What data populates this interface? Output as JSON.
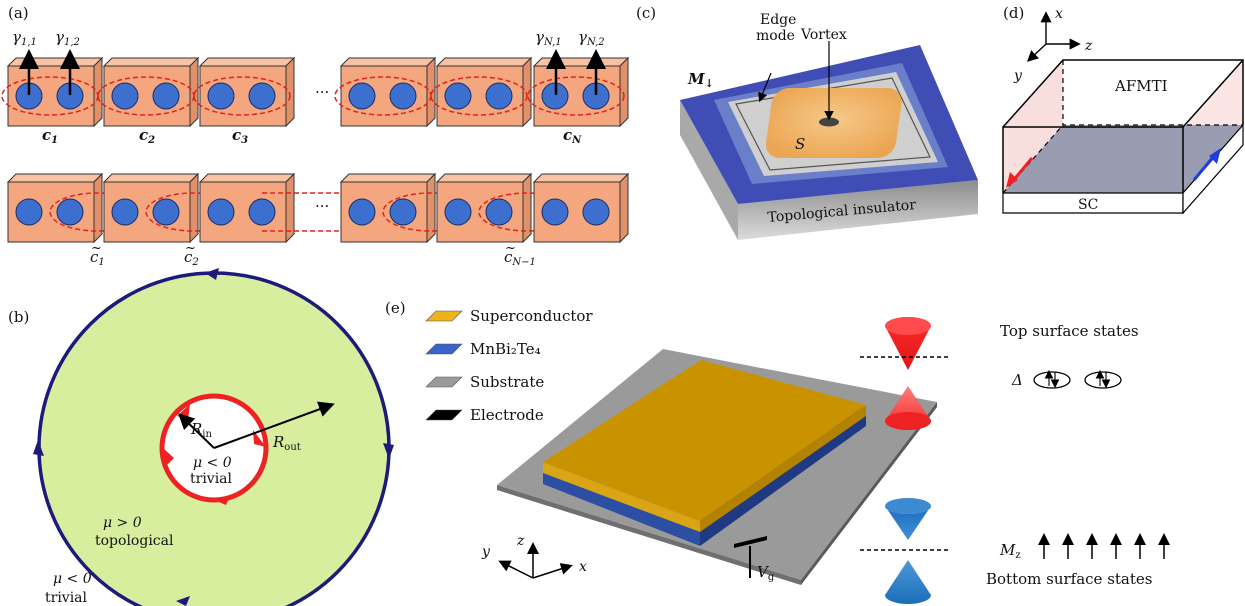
{
  "panels": {
    "a": {
      "label": "(a)",
      "gamma_11": "γ",
      "gamma_11_sub": "1,1",
      "gamma_12": "γ",
      "gamma_12_sub": "1,2",
      "gamma_n1": "γ",
      "gamma_n1_sub": "N,1",
      "gamma_n2": "γ",
      "gamma_n2_sub": "N,2",
      "dots": "···",
      "c1": "c",
      "c1_sub": "1",
      "c2": "c",
      "c2_sub": "2",
      "c3": "c",
      "c3_sub": "3",
      "cN": "c",
      "cN_sub": "N",
      "ct1": "c",
      "ct1_sub": "1",
      "ct2": "c",
      "ct2_sub": "2",
      "ctN1": "c",
      "ctN1_sub": "N−1",
      "tilde": "~"
    },
    "b": {
      "label": "(b)",
      "r_in": "R",
      "r_in_sub": "in",
      "r_out": "R",
      "r_out_sub": "out",
      "inner_mu": "μ < 0",
      "inner_trivial": "trivial",
      "ring_mu": "μ > 0",
      "ring_topological": "topological",
      "outer_mu": "μ < 0",
      "outer_trivial": "trivial"
    },
    "c": {
      "label": "(c)",
      "edge_mode_1": "Edge",
      "edge_mode_2": "mode",
      "vortex": "Vortex",
      "m": "M",
      "m_sub": "↓",
      "s": "S",
      "substrate": "Topological insulator"
    },
    "d": {
      "label": "(d)",
      "axis_x": "x",
      "axis_y": "y",
      "axis_z": "z",
      "afmti": "AFMTI",
      "sc": "SC"
    },
    "e": {
      "label": "(e)",
      "legend": [
        {
          "label": "Superconductor",
          "color": "#f0b21a"
        },
        {
          "label": "MnBi₂Te₄",
          "color": "#3d62c7"
        },
        {
          "label": "Substrate",
          "color": "#9a9a9a"
        },
        {
          "label": "Electrode",
          "color": "#000000"
        }
      ],
      "top_states": "Top surface states",
      "delta": "Δ",
      "bottom_states": "Bottom surface states",
      "mz": "M",
      "mz_sub": "z",
      "vg": "V",
      "vg_sub": "g",
      "axis_x": "x",
      "axis_y": "y",
      "axis_z": "z"
    }
  },
  "colors": {
    "block_fill": "#f4a77e",
    "site_fill": "#3d6fcf",
    "dashed_red": "#e2231a",
    "disk_green": "#d7ee9f",
    "outer_ring": "#1c1b7a",
    "inner_ring": "#ee2222",
    "cone_red": "#ee2222",
    "cone_blue": "#1f78c8"
  }
}
